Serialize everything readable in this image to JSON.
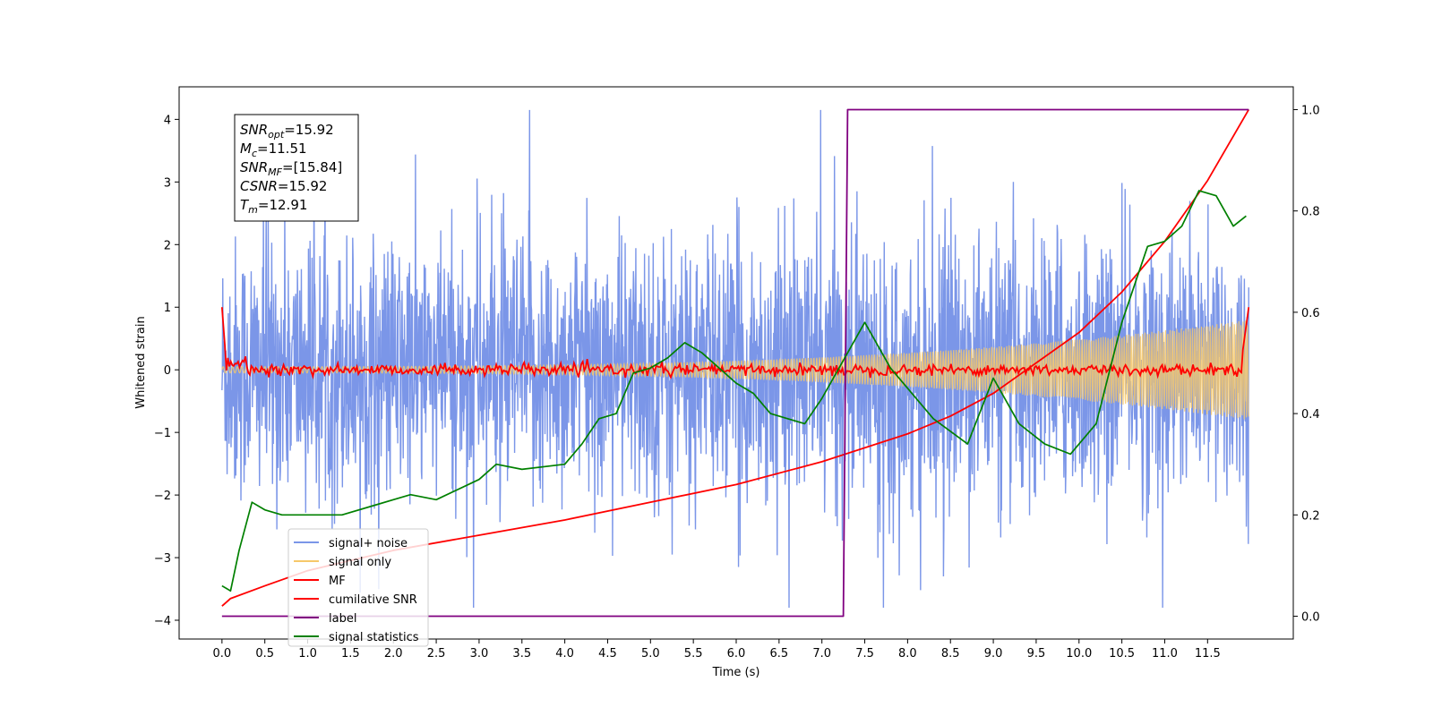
{
  "chart_data": {
    "type": "line",
    "xlabel": "Time (s)",
    "ylabel": "Whitened strain",
    "xlim": [
      -0.5,
      12.5
    ],
    "ylim": [
      -4.3,
      4.52
    ],
    "y2lim": [
      -0.045,
      1.045
    ],
    "xticks": [
      0.0,
      0.5,
      1.0,
      1.5,
      2.0,
      2.5,
      3.0,
      3.5,
      4.0,
      4.5,
      5.0,
      5.5,
      6.0,
      6.5,
      7.0,
      7.5,
      8.0,
      8.5,
      9.0,
      9.5,
      10.0,
      10.5,
      11.0,
      11.5
    ],
    "xtick_labels": [
      "0.0",
      "0.5",
      "1.0",
      "1.5",
      "2.0",
      "2.5",
      "3.0",
      "3.5",
      "4.0",
      "4.5",
      "5.0",
      "5.5",
      "6.0",
      "6.5",
      "7.0",
      "7.5",
      "8.0",
      "8.5",
      "9.0",
      "9.5",
      "10.0",
      "10.5",
      "11.0",
      "11.5"
    ],
    "yticks": [
      -4,
      -3,
      -2,
      -1,
      0,
      1,
      2,
      3,
      4
    ],
    "ytick_labels": [
      "−4",
      "−3",
      "−2",
      "−1",
      "0",
      "1",
      "2",
      "3",
      "4"
    ],
    "y2ticks": [
      0.0,
      0.2,
      0.4,
      0.6,
      0.8,
      1.0
    ],
    "y2tick_labels": [
      "0.0",
      "0.2",
      "0.4",
      "0.6",
      "0.8",
      "1.0"
    ],
    "grid": false,
    "legend_position": "lower-left",
    "stats_box": {
      "lines": [
        {
          "sym": "SNR",
          "sub": "opt",
          "value": "=15.92"
        },
        {
          "sym": "M",
          "sub": "c",
          "value": "=11.51"
        },
        {
          "sym": "SNR",
          "sub": "MF",
          "value": "=[15.84]"
        },
        {
          "sym": "CSNR",
          "sub": "",
          "value": "=15.92"
        },
        {
          "sym": "T",
          "sub": "m",
          "value": "=12.91"
        }
      ]
    },
    "series": [
      {
        "name": "signal+ noise",
        "axis": "left",
        "color": "#7b96e8",
        "description_kind": "noise",
        "amplitude_range": [
          -3.8,
          4.15
        ],
        "x_range": [
          0.0,
          11.98
        ]
      },
      {
        "name": "signal only",
        "axis": "left",
        "color": "#f6c86a",
        "description_kind": "chirp",
        "amplitude_start": 0.05,
        "amplitude_end": 0.8,
        "x_range": [
          0.0,
          11.98
        ]
      },
      {
        "name": "MF",
        "axis": "left",
        "color": "#ff0000",
        "description_kind": "matched-filter",
        "x": [
          0.0,
          0.05,
          0.1,
          0.15,
          0.2,
          11.8,
          11.9,
          11.95,
          11.98
        ],
        "y": [
          1.0,
          0.1,
          0.15,
          0.0,
          0.05,
          0.0,
          0.2,
          0.3,
          1.0
        ]
      },
      {
        "name": "cumilative SNR",
        "axis": "right",
        "color": "#ff0000",
        "x": [
          0.0,
          0.1,
          0.5,
          1.0,
          2.0,
          3.0,
          4.0,
          5.0,
          6.0,
          7.0,
          8.0,
          8.5,
          9.0,
          9.5,
          10.0,
          10.5,
          11.0,
          11.5,
          11.98
        ],
        "y": [
          0.02,
          0.035,
          0.06,
          0.09,
          0.13,
          0.16,
          0.19,
          0.225,
          0.26,
          0.305,
          0.36,
          0.395,
          0.44,
          0.5,
          0.56,
          0.64,
          0.74,
          0.86,
          1.0
        ]
      },
      {
        "name": "label",
        "axis": "right",
        "color": "#800080",
        "x": [
          0.0,
          7.25,
          7.3,
          11.98
        ],
        "y": [
          0.0,
          0.0,
          1.0,
          1.0
        ]
      },
      {
        "name": "signal statistics",
        "axis": "right",
        "color": "#008000",
        "x": [
          0.0,
          0.1,
          0.2,
          0.35,
          0.5,
          0.7,
          1.0,
          1.4,
          1.8,
          2.0,
          2.2,
          2.5,
          3.0,
          3.2,
          3.5,
          4.0,
          4.2,
          4.4,
          4.6,
          4.8,
          5.0,
          5.2,
          5.4,
          5.6,
          5.8,
          6.0,
          6.2,
          6.4,
          6.6,
          6.8,
          7.0,
          7.2,
          7.5,
          7.8,
          8.0,
          8.3,
          8.7,
          9.0,
          9.3,
          9.6,
          9.9,
          10.2,
          10.5,
          10.8,
          11.0,
          11.2,
          11.4,
          11.6,
          11.8,
          11.95
        ],
        "y": [
          0.06,
          0.05,
          0.13,
          0.225,
          0.21,
          0.2,
          0.2,
          0.2,
          0.22,
          0.23,
          0.24,
          0.23,
          0.27,
          0.3,
          0.29,
          0.3,
          0.34,
          0.39,
          0.4,
          0.48,
          0.49,
          0.51,
          0.54,
          0.52,
          0.49,
          0.46,
          0.44,
          0.4,
          0.39,
          0.38,
          0.43,
          0.49,
          0.58,
          0.49,
          0.45,
          0.39,
          0.34,
          0.47,
          0.38,
          0.34,
          0.32,
          0.38,
          0.58,
          0.73,
          0.74,
          0.77,
          0.84,
          0.83,
          0.77,
          0.79
        ]
      }
    ]
  }
}
